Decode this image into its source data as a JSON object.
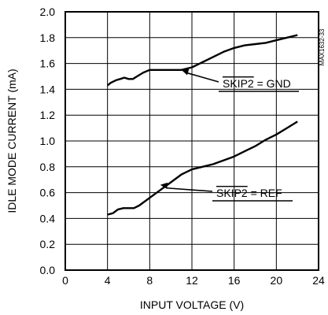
{
  "chart_data": {
    "type": "line",
    "title": "",
    "xlabel": "INPUT VOLTAGE (V)",
    "ylabel": "IDLE MODE CURRENT (mA)",
    "xlim": [
      0,
      24
    ],
    "ylim": [
      0.0,
      2.0
    ],
    "x_ticks": [
      "0",
      "4",
      "8",
      "12",
      "16",
      "20",
      "24"
    ],
    "y_ticks": [
      "0.0",
      "0.2",
      "0.4",
      "0.6",
      "0.8",
      "1.0",
      "1.2",
      "1.4",
      "1.6",
      "1.8",
      "2.0"
    ],
    "grid": true,
    "series": [
      {
        "id": "gnd",
        "points": [
          [
            4.0,
            1.43
          ],
          [
            4.3,
            1.45
          ],
          [
            4.8,
            1.47
          ],
          [
            5.2,
            1.48
          ],
          [
            5.6,
            1.49
          ],
          [
            6.0,
            1.48
          ],
          [
            6.4,
            1.48
          ],
          [
            6.8,
            1.5
          ],
          [
            7.4,
            1.53
          ],
          [
            8.0,
            1.55
          ],
          [
            9,
            1.55
          ],
          [
            10,
            1.55
          ],
          [
            11,
            1.55
          ],
          [
            12,
            1.57
          ],
          [
            13,
            1.61
          ],
          [
            14,
            1.65
          ],
          [
            15,
            1.69
          ],
          [
            16,
            1.72
          ],
          [
            17,
            1.74
          ],
          [
            18,
            1.75
          ],
          [
            19,
            1.76
          ],
          [
            20,
            1.78
          ],
          [
            21,
            1.8
          ],
          [
            22,
            1.82
          ]
        ]
      },
      {
        "id": "ref",
        "points": [
          [
            4.0,
            0.43
          ],
          [
            4.5,
            0.44
          ],
          [
            5.0,
            0.47
          ],
          [
            5.5,
            0.48
          ],
          [
            6.0,
            0.48
          ],
          [
            6.5,
            0.48
          ],
          [
            7.0,
            0.5
          ],
          [
            8.0,
            0.56
          ],
          [
            9.0,
            0.62
          ],
          [
            10.0,
            0.68
          ],
          [
            11.0,
            0.74
          ],
          [
            12.0,
            0.78
          ],
          [
            13.0,
            0.8
          ],
          [
            14.0,
            0.82
          ],
          [
            15.0,
            0.85
          ],
          [
            16.0,
            0.88
          ],
          [
            17.0,
            0.92
          ],
          [
            18.0,
            0.96
          ],
          [
            19.0,
            1.01
          ],
          [
            20.0,
            1.05
          ],
          [
            21.0,
            1.1
          ],
          [
            22.0,
            1.15
          ]
        ]
      }
    ],
    "annotations": [
      {
        "id": "gnd",
        "signal": "SKIP2",
        "rest": " = GND",
        "point": [
          11,
          1.55
        ]
      },
      {
        "id": "ref",
        "signal": "SKIP2",
        "rest": " = REF",
        "point": [
          9,
          0.66
        ]
      }
    ],
    "watermark": "MAX1632-33"
  }
}
